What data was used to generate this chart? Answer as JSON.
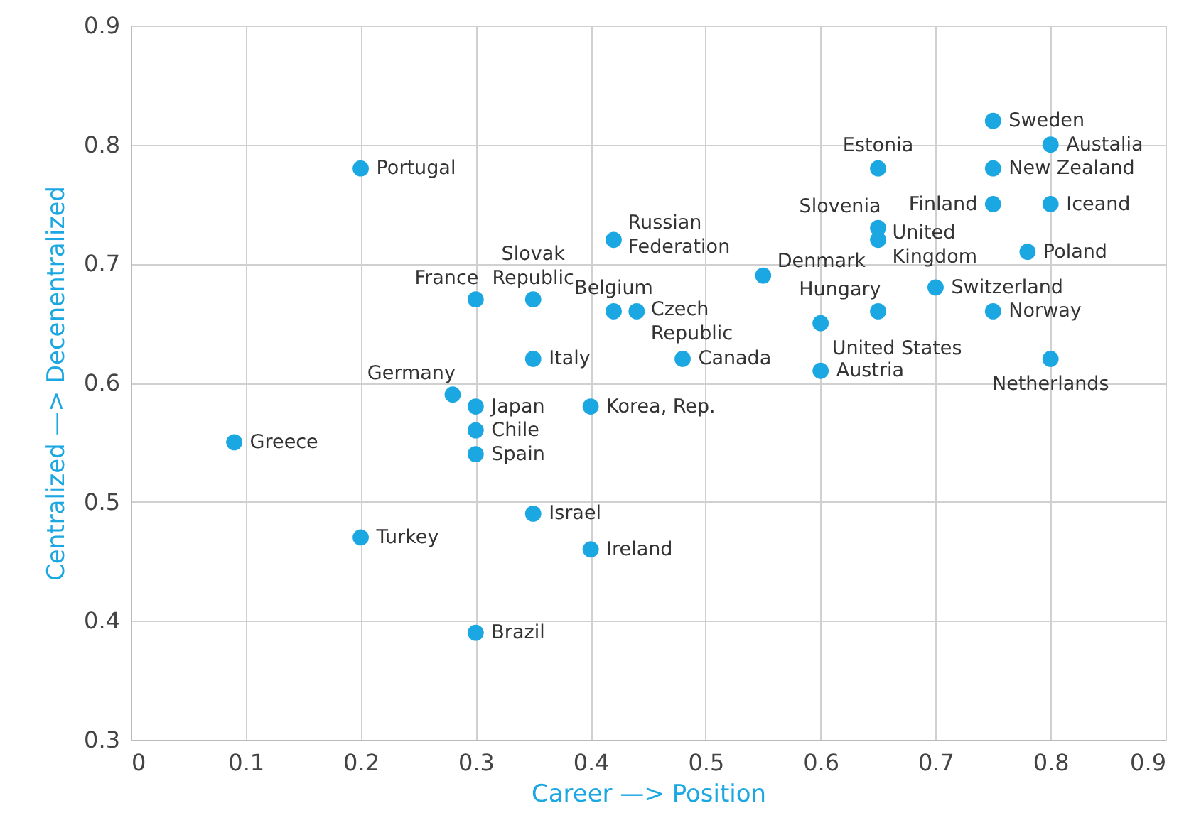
{
  "chart_data": {
    "type": "scatter",
    "xlabel": "Career —> Position",
    "ylabel": "Centralized —> Decenentralized",
    "xlim": [
      0,
      0.9
    ],
    "ylim": [
      0.3,
      0.9
    ],
    "xticks": [
      {
        "value": 0,
        "label": "0"
      },
      0.1,
      0.2,
      0.3,
      0.4,
      0.5,
      0.6,
      0.7,
      0.8,
      0.9
    ],
    "yticks": [
      0.3,
      0.4,
      0.5,
      0.6,
      0.7,
      0.8,
      0.9
    ],
    "grid": true,
    "marker": "circle",
    "series": [
      {
        "color": "#1aa7e2",
        "x": [
          0.2,
          0.09,
          0.2,
          0.3,
          0.28,
          0.3,
          0.3,
          0.3,
          0.35,
          0.4,
          0.4,
          0.35,
          0.3,
          0.35,
          0.42,
          0.42,
          0.44,
          0.48,
          0.55,
          0.6,
          0.6,
          0.65,
          0.65,
          0.65,
          0.65,
          0.7,
          0.75,
          0.8,
          0.75,
          0.75,
          0.8,
          0.78,
          0.75,
          0.8
        ],
        "values": [
          0.78,
          0.55,
          0.47,
          0.39,
          0.59,
          0.58,
          0.56,
          0.54,
          0.49,
          0.46,
          0.58,
          0.62,
          0.67,
          0.67,
          0.72,
          0.66,
          0.66,
          0.62,
          0.69,
          0.65,
          0.61,
          0.66,
          0.78,
          0.73,
          0.72,
          0.68,
          0.82,
          0.8,
          0.78,
          0.75,
          0.75,
          0.71,
          0.66,
          0.62
        ]
      }
    ],
    "annotations": [
      {
        "text": "Portugal",
        "x": 0.2,
        "y": 0.78
      },
      {
        "text": "Greece",
        "x": 0.09,
        "y": 0.55
      },
      {
        "text": "Turkey",
        "x": 0.2,
        "y": 0.47
      },
      {
        "text": "Brazil",
        "x": 0.3,
        "y": 0.39
      },
      {
        "text": "Germany",
        "x": 0.28,
        "y": 0.59
      },
      {
        "text": "Japan",
        "x": 0.3,
        "y": 0.58
      },
      {
        "text": "Chile",
        "x": 0.3,
        "y": 0.56
      },
      {
        "text": "Spain",
        "x": 0.3,
        "y": 0.54
      },
      {
        "text": "Israel",
        "x": 0.35,
        "y": 0.49
      },
      {
        "text": "Ireland",
        "x": 0.4,
        "y": 0.46
      },
      {
        "text": "Korea, Rep.",
        "x": 0.4,
        "y": 0.58
      },
      {
        "text": "Italy",
        "x": 0.35,
        "y": 0.62
      },
      {
        "text": "France",
        "x": 0.3,
        "y": 0.67
      },
      {
        "text": "Slovak Republic",
        "x": 0.35,
        "y": 0.67
      },
      {
        "text": "Russian Federation",
        "x": 0.42,
        "y": 0.72
      },
      {
        "text": "Belgium",
        "x": 0.42,
        "y": 0.66
      },
      {
        "text": "Czech Republic",
        "x": 0.44,
        "y": 0.66
      },
      {
        "text": "Canada",
        "x": 0.48,
        "y": 0.62
      },
      {
        "text": "Denmark",
        "x": 0.55,
        "y": 0.69
      },
      {
        "text": "United States",
        "x": 0.6,
        "y": 0.65
      },
      {
        "text": "Austria",
        "x": 0.6,
        "y": 0.61
      },
      {
        "text": "Hungary",
        "x": 0.65,
        "y": 0.66
      },
      {
        "text": "Estonia",
        "x": 0.65,
        "y": 0.78
      },
      {
        "text": "Slovenia",
        "x": 0.65,
        "y": 0.73
      },
      {
        "text": "United Kingdom",
        "x": 0.65,
        "y": 0.72
      },
      {
        "text": "Switzerland",
        "x": 0.7,
        "y": 0.68
      },
      {
        "text": "Sweden",
        "x": 0.75,
        "y": 0.82
      },
      {
        "text": "Austalia",
        "x": 0.8,
        "y": 0.8
      },
      {
        "text": "New Zealand",
        "x": 0.75,
        "y": 0.78
      },
      {
        "text": "Finland",
        "x": 0.75,
        "y": 0.75
      },
      {
        "text": "Iceand",
        "x": 0.8,
        "y": 0.75
      },
      {
        "text": "Poland",
        "x": 0.78,
        "y": 0.71
      },
      {
        "text": "Norway",
        "x": 0.75,
        "y": 0.66
      },
      {
        "text": "Netherlands",
        "x": 0.8,
        "y": 0.62
      }
    ]
  }
}
